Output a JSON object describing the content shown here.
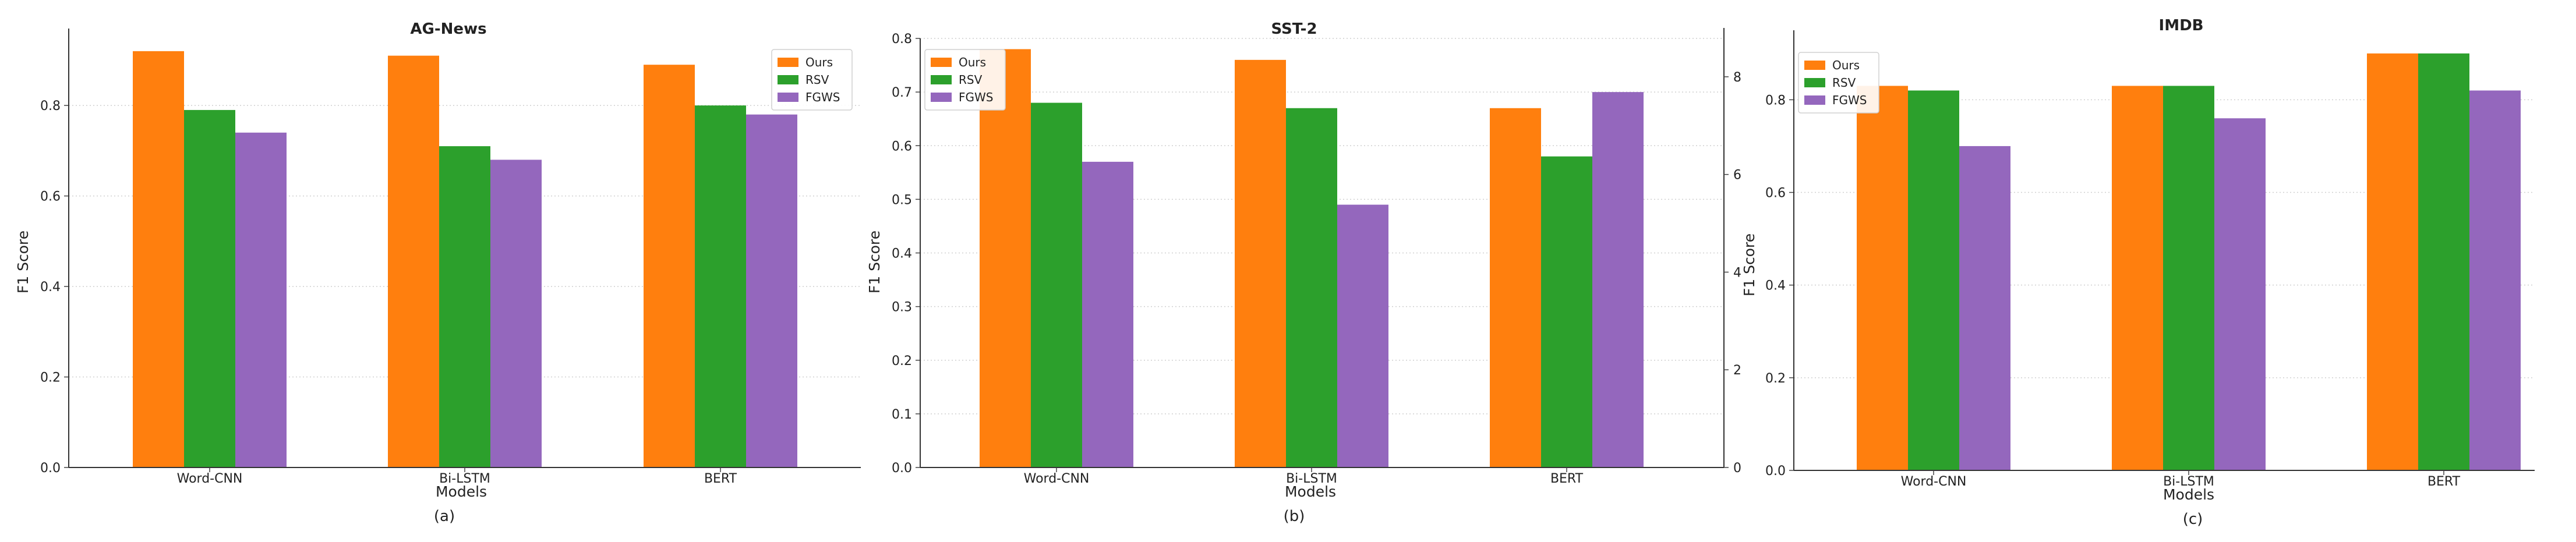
{
  "figure": {
    "panels": [
      {
        "caption": "(a)"
      },
      {
        "caption": "(b)"
      },
      {
        "caption": "(c)"
      }
    ]
  },
  "chart_data": [
    {
      "type": "bar",
      "title": "AG-News",
      "xlabel": "Models",
      "ylabel": "F1 Score",
      "categories": [
        "Word-CNN",
        "Bi-LSTM",
        "BERT"
      ],
      "series": [
        {
          "name": "Ours",
          "color": "#ff7f0e",
          "values": [
            0.92,
            0.91,
            0.89
          ]
        },
        {
          "name": "RSV",
          "color": "#2ca02c",
          "values": [
            0.79,
            0.71,
            0.8
          ]
        },
        {
          "name": "FGWS",
          "color": "#9467bd",
          "values": [
            0.74,
            0.68,
            0.78
          ]
        }
      ],
      "ylim": [
        0,
        0.97
      ],
      "yticks": [
        "0.0",
        "0.2",
        "0.4",
        "0.6",
        "0.8"
      ],
      "grid": "horizontal-dotted",
      "legend": "top-right"
    },
    {
      "type": "bar",
      "title": "SST-2",
      "xlabel": "Models",
      "ylabel": "F1 Score",
      "categories": [
        "Word-CNN",
        "Bi-LSTM",
        "BERT"
      ],
      "series": [
        {
          "name": "Ours",
          "color": "#ff7f0e",
          "values": [
            0.78,
            0.76,
            0.67
          ]
        },
        {
          "name": "RSV",
          "color": "#2ca02c",
          "values": [
            0.68,
            0.67,
            0.58
          ]
        },
        {
          "name": "FGWS",
          "color": "#9467bd",
          "values": [
            0.57,
            0.49,
            0.7
          ]
        }
      ],
      "ylim": [
        0,
        0.8
      ],
      "yticks": [
        "0.0",
        "0.1",
        "0.2",
        "0.3",
        "0.4",
        "0.5",
        "0.6",
        "0.7",
        "0.8"
      ],
      "y2lim": [
        0,
        9
      ],
      "y2ticks": [
        "0",
        "2",
        "4",
        "6",
        "8"
      ],
      "grid": "horizontal-dotted",
      "legend": "top-left"
    },
    {
      "type": "bar",
      "title": "IMDB",
      "xlabel": "Models",
      "ylabel": "F1 Score",
      "categories": [
        "Word-CNN",
        "Bi-LSTM",
        "BERT"
      ],
      "series": [
        {
          "name": "Ours",
          "color": "#ff7f0e",
          "values": [
            0.83,
            0.83,
            0.9
          ]
        },
        {
          "name": "RSV",
          "color": "#2ca02c",
          "values": [
            0.82,
            0.83,
            0.9
          ]
        },
        {
          "name": "FGWS",
          "color": "#9467bd",
          "values": [
            0.7,
            0.76,
            0.82
          ]
        }
      ],
      "ylim": [
        0,
        0.95
      ],
      "yticks": [
        "0.0",
        "0.2",
        "0.4",
        "0.6",
        "0.8"
      ],
      "grid": "horizontal-dotted",
      "legend": "top-left"
    }
  ]
}
